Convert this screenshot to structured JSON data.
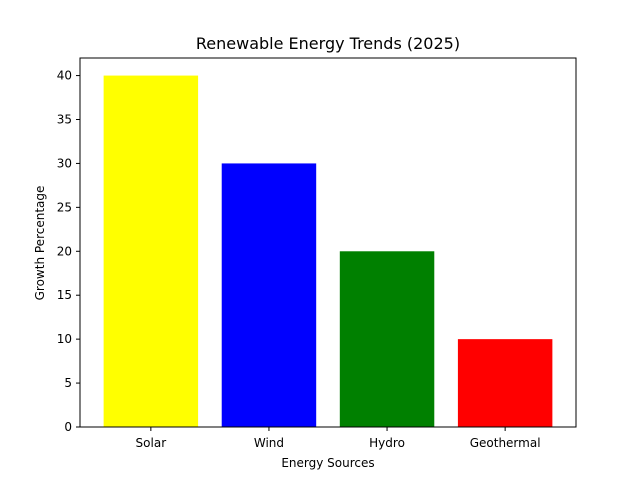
{
  "chart_data": {
    "type": "bar",
    "title": "Renewable Energy Trends (2025)",
    "xlabel": "Energy Sources",
    "ylabel": "Growth Percentage",
    "categories": [
      "Solar",
      "Wind",
      "Hydro",
      "Geothermal"
    ],
    "values": [
      40,
      30,
      20,
      10
    ],
    "colors": [
      "#ffff00",
      "#0000ff",
      "#008000",
      "#ff0000"
    ],
    "ylim": [
      0,
      42
    ],
    "yticks": [
      0,
      5,
      10,
      15,
      20,
      25,
      30,
      35,
      40
    ],
    "grid": false,
    "legend": false
  }
}
